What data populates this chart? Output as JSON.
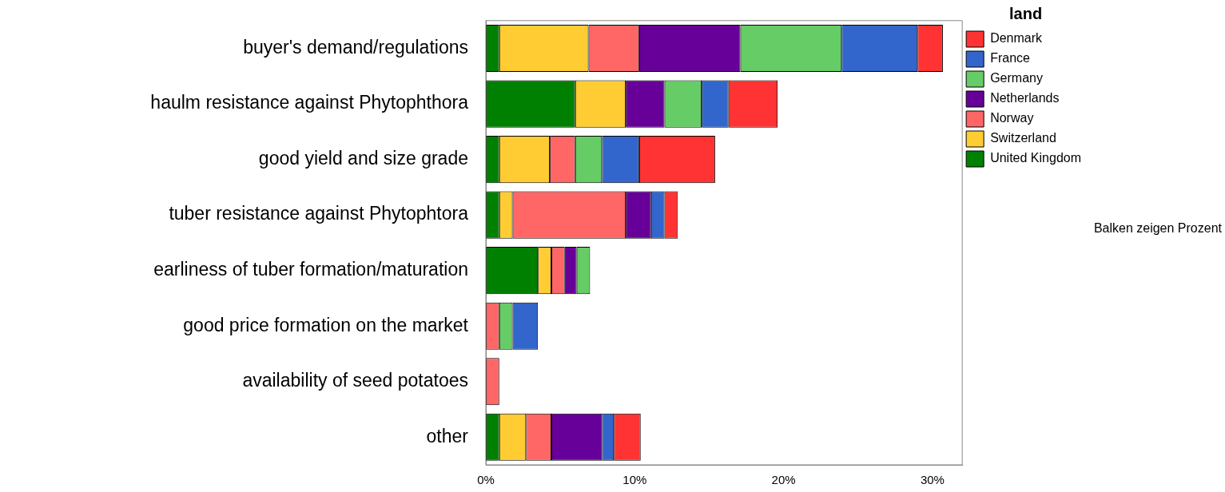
{
  "chart_data": {
    "type": "bar",
    "orientation": "horizontal",
    "stacked": true,
    "categories": [
      "buyer's demand/regulations",
      "haulm resistance against Phytophthora",
      "good yield and size grade",
      "tuber resistance against Phytophtora",
      "earliness of tuber formation/maturation",
      "good price formation on the market",
      "availability of seed potatoes",
      "other"
    ],
    "series": [
      {
        "name": "United Kingdom",
        "color": "#008000",
        "values": [
          0.9,
          6.0,
          0.9,
          0.9,
          3.5,
          null,
          null,
          0.9
        ]
      },
      {
        "name": "Switzerland",
        "color": "#ffcc33",
        "values": [
          6.0,
          3.4,
          3.4,
          0.9,
          0.9,
          null,
          null,
          1.8
        ]
      },
      {
        "name": "Norway",
        "color": "#ff6666",
        "values": [
          3.4,
          null,
          1.7,
          7.6,
          0.9,
          0.9,
          0.9,
          1.7
        ]
      },
      {
        "name": "Netherlands",
        "color": "#660099",
        "values": [
          6.8,
          2.6,
          null,
          1.7,
          0.8,
          null,
          null,
          3.4
        ]
      },
      {
        "name": "Germany",
        "color": "#66cc66",
        "values": [
          6.8,
          2.5,
          1.8,
          null,
          0.9,
          0.9,
          null,
          null
        ]
      },
      {
        "name": "France",
        "color": "#3366cc",
        "values": [
          5.1,
          1.8,
          2.5,
          0.9,
          null,
          1.7,
          null,
          0.8
        ]
      },
      {
        "name": "Denmark",
        "color": "#ff3333",
        "values": [
          1.7,
          3.3,
          5.1,
          0.9,
          null,
          null,
          null,
          1.8
        ]
      }
    ],
    "xlim": [
      0,
      32
    ],
    "xticks": [
      {
        "value": 0,
        "label": "0%"
      },
      {
        "value": 10,
        "label": "10%"
      },
      {
        "value": 20,
        "label": "20%"
      },
      {
        "value": 30,
        "label": "30%"
      }
    ],
    "grid": false,
    "legend": "top right",
    "legend_title": "land",
    "annotations": [
      "Balken zeigen Prozent"
    ]
  }
}
